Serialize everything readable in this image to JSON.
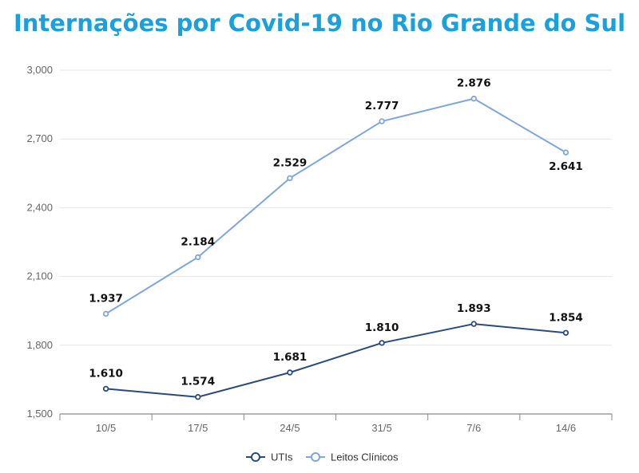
{
  "chart_data": {
    "type": "line",
    "title": "Internações por Covid-19 no Rio Grande do Sul",
    "categories": [
      "10/5",
      "17/5",
      "24/5",
      "31/5",
      "7/6",
      "14/6"
    ],
    "series": [
      {
        "name": "UTIs",
        "values": [
          1610,
          1574,
          1681,
          1810,
          1893,
          1854
        ],
        "labels": [
          "1.610",
          "1.574",
          "1.681",
          "1.810",
          "1.893",
          "1.854"
        ],
        "color": "#2b4a7e"
      },
      {
        "name": "Leitos Clínicos",
        "values": [
          1937,
          2184,
          2529,
          2777,
          2876,
          2641
        ],
        "labels": [
          "1.937",
          "2.184",
          "2.529",
          "2.777",
          "2.876",
          "2.641"
        ],
        "color": "#7fa6da"
      }
    ],
    "ylim": [
      1500,
      3000
    ],
    "yticks": [
      1500,
      1800,
      2100,
      2400,
      2700,
      3000
    ],
    "ytick_labels": [
      "1,500",
      "1,800",
      "2,100",
      "2,400",
      "2,700",
      "3,000"
    ],
    "grid": true,
    "legend_position": "bottom-center",
    "xlabel": "",
    "ylabel": ""
  }
}
